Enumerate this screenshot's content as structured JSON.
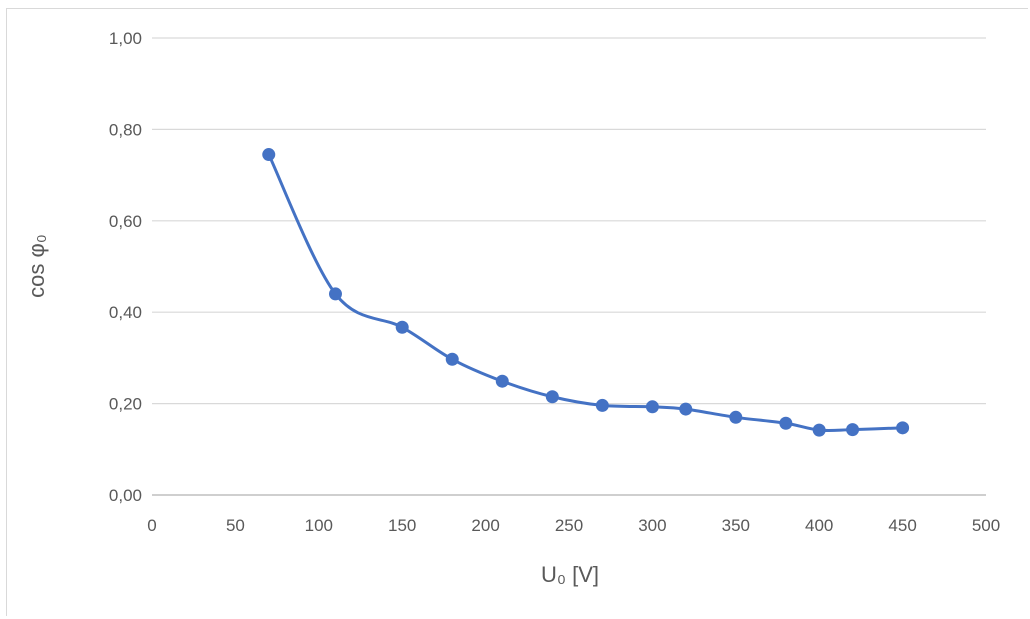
{
  "chart_data": {
    "type": "scatter",
    "title": "",
    "xlabel": "U₀ [V]",
    "ylabel": "cos φ₀",
    "xlim": [
      0,
      500
    ],
    "ylim": [
      0,
      1
    ],
    "x_ticks": [
      "0",
      "50",
      "100",
      "150",
      "200",
      "250",
      "300",
      "350",
      "400",
      "450",
      "500"
    ],
    "y_ticks": [
      "0,00",
      "0,20",
      "0,40",
      "0,60",
      "0,80",
      "1,00"
    ],
    "grid": "horizontal",
    "smooth": true,
    "series": [
      {
        "color": "#4472c4",
        "x": [
          70,
          110,
          150,
          180,
          210,
          240,
          270,
          300,
          320,
          350,
          380,
          400,
          420,
          450
        ],
        "y": [
          0.745,
          0.44,
          0.367,
          0.297,
          0.249,
          0.215,
          0.196,
          0.193,
          0.188,
          0.17,
          0.157,
          0.142,
          0.143,
          0.147
        ]
      }
    ]
  }
}
